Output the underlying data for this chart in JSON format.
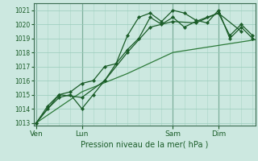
{
  "background_color": "#cce8e0",
  "grid_color": "#99ccbb",
  "line_color_dark": "#1a5c28",
  "line_color_smooth": "#2d7a3a",
  "xlabel": "Pression niveau de la mer( hPa )",
  "ylim": [
    1012.8,
    1021.5
  ],
  "yticks": [
    1013,
    1014,
    1015,
    1016,
    1017,
    1018,
    1019,
    1020,
    1021
  ],
  "xtick_labels": [
    "Ven",
    "Lun",
    "Sam",
    "Dim"
  ],
  "xtick_positions": [
    0,
    48,
    144,
    192
  ],
  "xmax": 228,
  "series1": {
    "x": [
      0,
      12,
      24,
      36,
      48,
      60,
      72,
      84,
      96,
      108,
      120,
      132,
      144,
      156,
      168,
      180,
      192,
      204,
      216,
      228
    ],
    "y": [
      1013.0,
      1014.0,
      1014.8,
      1015.0,
      1014.0,
      1015.0,
      1016.0,
      1017.2,
      1018.2,
      1019.0,
      1020.5,
      1020.0,
      1020.5,
      1019.8,
      1020.2,
      1020.5,
      1020.8,
      1019.2,
      1020.0,
      1019.2
    ]
  },
  "series2": {
    "x": [
      0,
      24,
      48,
      72,
      96,
      120,
      144,
      168,
      192,
      216
    ],
    "y": [
      1013.0,
      1015.0,
      1014.8,
      1016.0,
      1018.0,
      1019.8,
      1020.2,
      1020.1,
      1020.8,
      1019.5
    ]
  },
  "series3": {
    "x": [
      0,
      48,
      96,
      144,
      192,
      240
    ],
    "y": [
      1013.0,
      1015.2,
      1016.5,
      1018.0,
      1018.5,
      1019.0
    ]
  },
  "series4": {
    "x": [
      0,
      12,
      24,
      36,
      48,
      60,
      72,
      84,
      96,
      108,
      120,
      132,
      144,
      156,
      168,
      180,
      192,
      204,
      216,
      228
    ],
    "y": [
      1013.0,
      1014.2,
      1015.0,
      1015.2,
      1015.8,
      1016.0,
      1017.0,
      1017.2,
      1019.2,
      1020.5,
      1020.8,
      1020.2,
      1021.0,
      1020.8,
      1020.3,
      1020.1,
      1021.0,
      1019.0,
      1019.8,
      1019.0
    ]
  }
}
